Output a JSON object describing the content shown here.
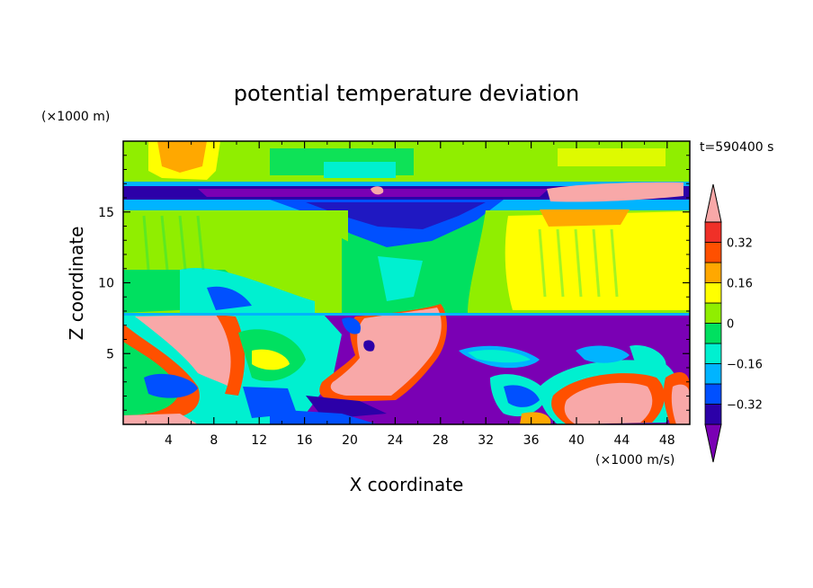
{
  "chart_data": {
    "type": "heatmap",
    "title": "potential temperature deviation",
    "xlabel": "X coordinate",
    "ylabel": "Z coordinate",
    "x_unit": "(×1000 m/s)",
    "y_unit": "(×1000 m)",
    "time_label": "t=590400 s",
    "xlim": [
      0,
      50
    ],
    "ylim": [
      0,
      20
    ],
    "x_ticks": [
      4,
      8,
      12,
      16,
      20,
      24,
      28,
      32,
      36,
      40,
      44,
      48
    ],
    "y_ticks": [
      5,
      10,
      15
    ],
    "colorbar": {
      "levels": [
        -0.4,
        -0.32,
        -0.24,
        -0.16,
        -0.08,
        0,
        0.08,
        0.16,
        0.24,
        0.32,
        0.4
      ],
      "labels": [
        "0.32",
        "0.16",
        "0",
        "−0.16",
        "−0.32"
      ],
      "label_values": [
        0.32,
        0.16,
        0,
        -0.16,
        -0.32
      ],
      "colors": [
        "#7a00b4",
        "#2c00a8",
        "#0050ff",
        "#00b4ff",
        "#00f0d0",
        "#00e060",
        "#90ee00",
        "#ffff00",
        "#ffa800",
        "#ff5000",
        "#f03028",
        "#f8a8a8"
      ]
    },
    "layers": [
      {
        "z_range": [
          0,
          7.6
        ],
        "description_value": "mixed, mostly negative (purple) with positive (pink) plumes"
      },
      {
        "z_range": [
          7.6,
          15.5
        ],
        "description_value": "near zero to slightly positive"
      },
      {
        "z_range": [
          15.5,
          17
        ],
        "description_value": "strongly negative band"
      },
      {
        "z_range": [
          17,
          20
        ],
        "description_value": "near zero to slightly positive"
      }
    ]
  }
}
